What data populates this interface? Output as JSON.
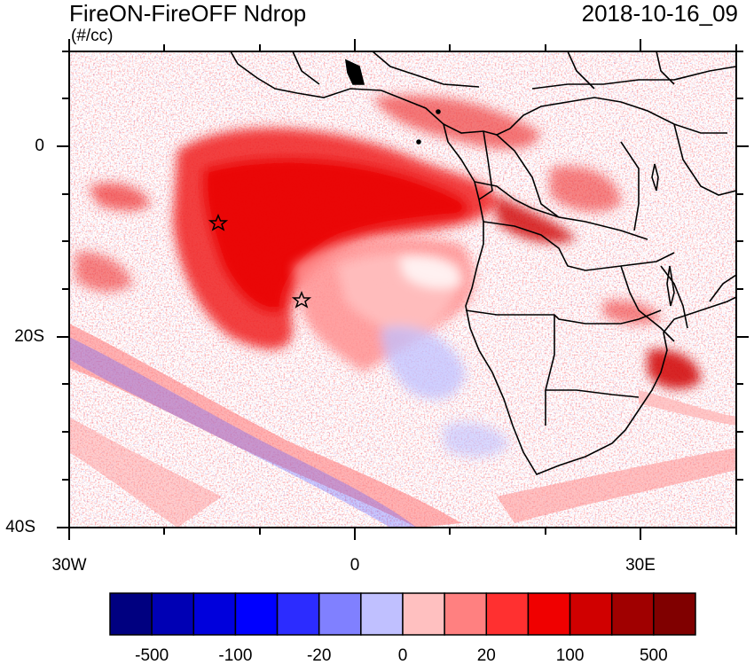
{
  "title": "FireON-FireOFF Ndrop",
  "units": "(#/cc)",
  "datetime": "2018-10-16_09",
  "map": {
    "lon_range": [
      -30,
      40
    ],
    "lat_range": [
      -40,
      10
    ],
    "y_ticks": [
      {
        "value": 0,
        "label": "0"
      },
      {
        "value": -20,
        "label": "20S"
      },
      {
        "value": -40,
        "label": "40S"
      }
    ],
    "x_ticks": [
      {
        "value": -30,
        "label": "30W"
      },
      {
        "value": 0,
        "label": "0"
      },
      {
        "value": 30,
        "label": "30E"
      }
    ],
    "markers": [
      {
        "name": "star-marker",
        "lon": -14.5,
        "lat": -8
      },
      {
        "name": "star-marker",
        "lon": -5.7,
        "lat": -16
      }
    ]
  },
  "colorbar": {
    "colors": [
      "#000080",
      "#0000b4",
      "#0000dc",
      "#0000ff",
      "#2c2cff",
      "#8080ff",
      "#c0c0ff",
      "#ffc0c0",
      "#ff8080",
      "#ff3030",
      "#f00000",
      "#d00000",
      "#a00000",
      "#800000"
    ],
    "labels": [
      "-500",
      "-100",
      "-20",
      "0",
      "20",
      "100",
      "500"
    ]
  }
}
